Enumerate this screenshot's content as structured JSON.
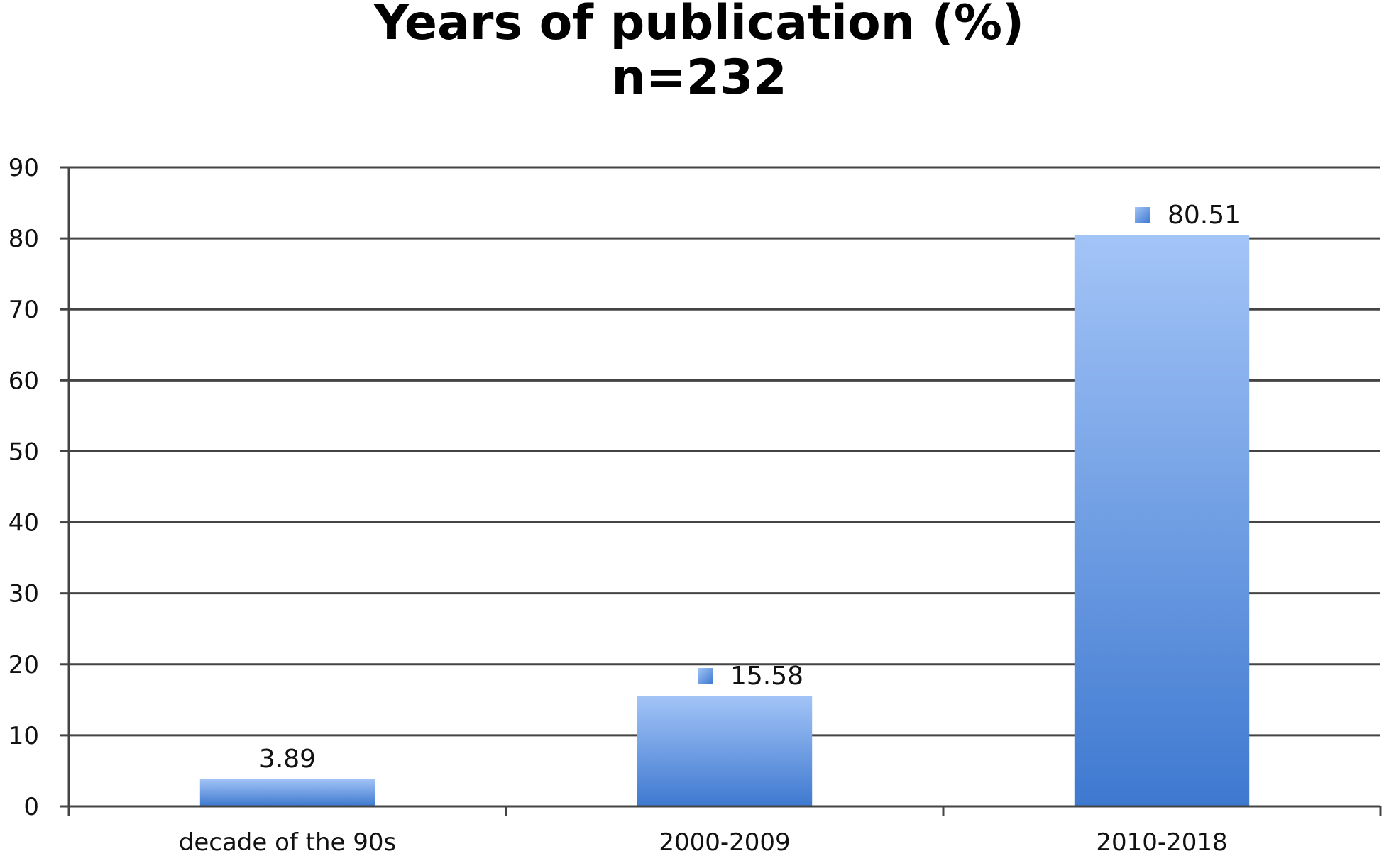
{
  "chart_data": {
    "type": "bar",
    "title": "Years of publication (%)",
    "subtitle": "n=232",
    "xlabel": "",
    "ylabel": "",
    "categories": [
      "decade of the 90s",
      "2000-2009",
      "2010-2018"
    ],
    "values": [
      3.89,
      15.58,
      80.51
    ],
    "data_labels": [
      "3.89",
      "15.58",
      "80.51"
    ],
    "label_marker": [
      false,
      true,
      true
    ],
    "ylim": [
      0,
      90
    ],
    "yticks": [
      0,
      10,
      20,
      30,
      40,
      50,
      60,
      70,
      80,
      90
    ],
    "grid": true,
    "legend": "none",
    "colors": {
      "bar_top": "#a3c4f7",
      "bar_bottom": "#3e79d0",
      "marker_top": "#a3c4f7",
      "marker_bottom": "#3e79d0",
      "grid": "#444444",
      "text": "#111111"
    }
  }
}
